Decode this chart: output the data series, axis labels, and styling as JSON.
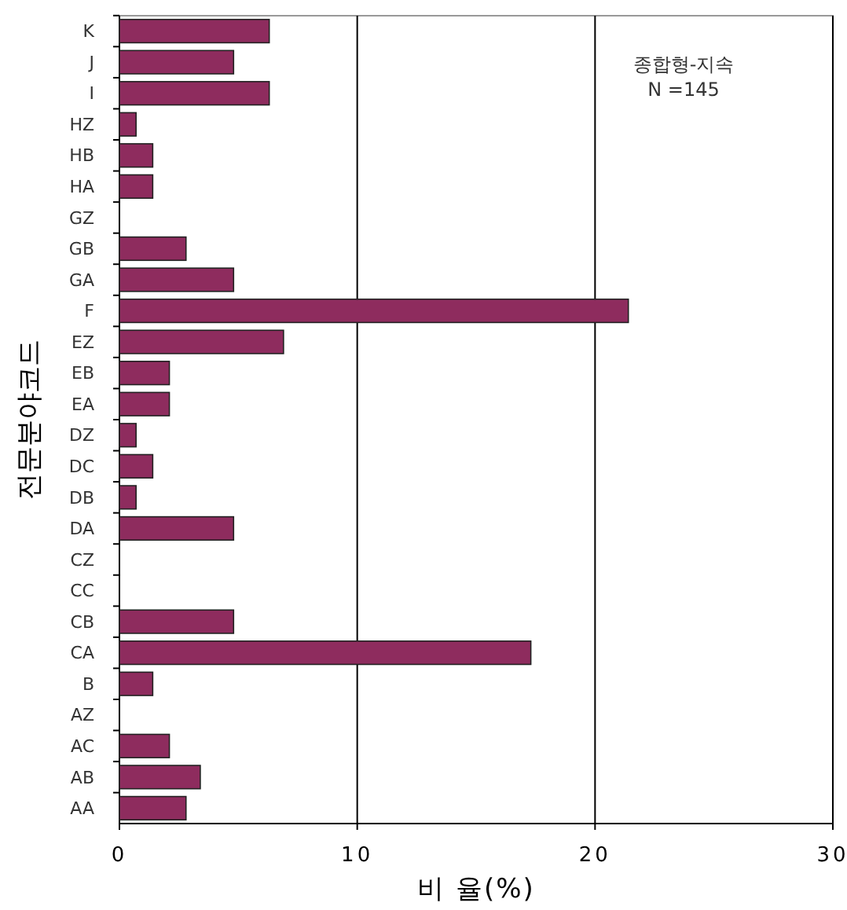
{
  "chart_data": {
    "type": "bar",
    "orientation": "horizontal",
    "categories": [
      "K",
      "J",
      "I",
      "HZ",
      "HB",
      "HA",
      "GZ",
      "GB",
      "GA",
      "F",
      "EZ",
      "EB",
      "EA",
      "DZ",
      "DC",
      "DB",
      "DA",
      "CZ",
      "CC",
      "CB",
      "CA",
      "B",
      "AZ",
      "AC",
      "AB",
      "AA"
    ],
    "values": [
      6.3,
      4.8,
      6.3,
      0.7,
      1.4,
      1.4,
      0,
      2.8,
      4.8,
      21.4,
      6.9,
      2.1,
      2.1,
      0.7,
      1.4,
      0.7,
      4.8,
      0,
      0,
      4.8,
      17.3,
      1.4,
      0,
      2.1,
      3.4,
      2.8
    ],
    "color": "#8e2c5e",
    "xlim": [
      0,
      30
    ],
    "xticks": [
      0,
      10,
      20,
      30
    ],
    "xlabel": "비 율(%)",
    "ylabel": "전문분야코드",
    "annotations": [
      "종합형-지속",
      "N =145"
    ],
    "grid": "x"
  }
}
